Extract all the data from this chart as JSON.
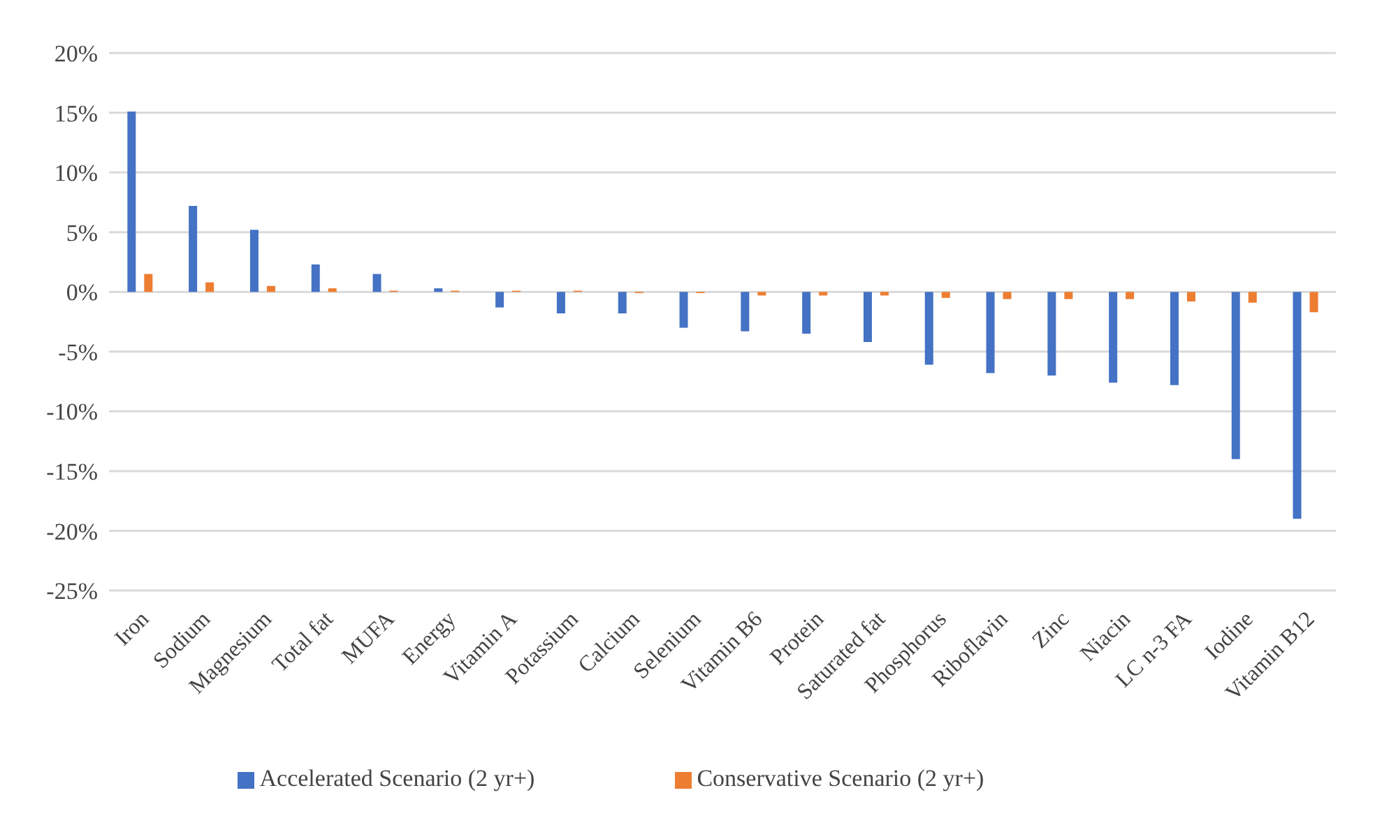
{
  "chart_data": {
    "type": "bar",
    "categories": [
      "Iron",
      "Sodium",
      "Magnesium",
      "Total fat",
      "MUFA",
      "Energy",
      "Vitamin A",
      "Potassium",
      "Calcium",
      "Selenium",
      "Vitamin B6",
      "Protein",
      "Saturated fat",
      "Phosphorus",
      "Riboflavin",
      "Zinc",
      "Niacin",
      "LC n-3 FA",
      "Iodine",
      "Vitamin B12"
    ],
    "series": [
      {
        "name": "Accelerated Scenario (2 yr+)",
        "color": "#4472c4",
        "values": [
          15.1,
          7.2,
          5.2,
          2.3,
          1.5,
          0.3,
          -1.3,
          -1.8,
          -1.8,
          -3.0,
          -3.3,
          -3.5,
          -4.2,
          -6.1,
          -6.8,
          -7.0,
          -7.6,
          -7.8,
          -14.0,
          -19.0
        ]
      },
      {
        "name": "Conservative Scenario (2 yr+)",
        "color": "#ed7d31",
        "values": [
          1.5,
          0.8,
          0.5,
          0.3,
          0.1,
          0.1,
          0.1,
          0.1,
          -0.1,
          -0.1,
          -0.3,
          -0.3,
          -0.3,
          -0.5,
          -0.6,
          -0.6,
          -0.6,
          -0.8,
          -0.9,
          -1.7
        ]
      }
    ],
    "ylim": [
      -25,
      20
    ],
    "yticks": [
      {
        "value": -25,
        "label": "-25%"
      },
      {
        "value": -20,
        "label": "-20%"
      },
      {
        "value": -15,
        "label": "-15%"
      },
      {
        "value": -10,
        "label": "-10%"
      },
      {
        "value": -5,
        "label": "-5%"
      },
      {
        "value": 0,
        "label": "0%"
      },
      {
        "value": 5,
        "label": "5%"
      },
      {
        "value": 10,
        "label": "10%"
      },
      {
        "value": 15,
        "label": "15%"
      },
      {
        "value": 20,
        "label": "20%"
      }
    ],
    "grid": "y",
    "legend": "bottom"
  }
}
